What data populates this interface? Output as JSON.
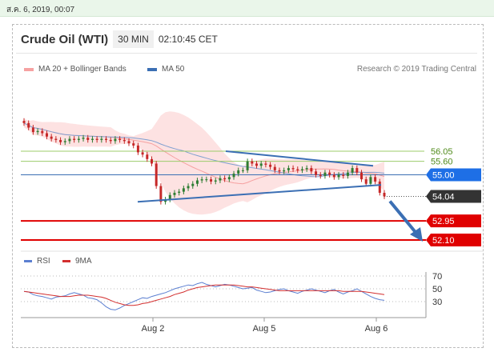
{
  "date_bar": "ส.ค. 6, 2019, 00:07",
  "header": {
    "symbol": "Crude Oil (WTI)",
    "timeframe": "30 MIN",
    "time": "02:10:45 CET"
  },
  "legend": {
    "bollinger": "MA 20 + Bollinger Bands",
    "ma50": "MA 50",
    "credit": "Research © 2019 Trading Central",
    "rsi": "RSI",
    "rsi_ma": "9MA"
  },
  "colors": {
    "bollinger": "#f6a1a1",
    "bollinger_fill": "#fde2e2",
    "ma50": "#3b6fb4",
    "support": "#e00000",
    "resistance": "#9ccc6b",
    "pivot": "#3b6fb4",
    "current": "#333333",
    "candle_up": "#2e7d32",
    "candle_down": "#c62828",
    "rsi": "#5b7fd1",
    "rsi_ma": "#d32f2f"
  },
  "chart_data": [
    {
      "type": "candlestick",
      "title": "Crude Oil (WTI)",
      "x_ticks": [
        "Aug 2",
        "Aug 5",
        "Aug 6"
      ],
      "y_range": [
        51.6,
        57.2
      ],
      "levels": [
        {
          "label": "56.05",
          "value": 56.05,
          "kind": "resistance"
        },
        {
          "label": "55.60",
          "value": 55.6,
          "kind": "resistance"
        },
        {
          "label": "55.00",
          "value": 55.0,
          "kind": "pivot"
        },
        {
          "label": "54.04",
          "value": 54.04,
          "kind": "current"
        },
        {
          "label": "52.95",
          "value": 52.95,
          "kind": "support"
        },
        {
          "label": "52.10",
          "value": 52.1,
          "kind": "support"
        }
      ],
      "close": [
        57.3,
        57.1,
        56.9,
        56.95,
        56.85,
        56.7,
        56.6,
        56.55,
        56.45,
        56.5,
        56.6,
        56.55,
        56.6,
        56.65,
        56.55,
        56.6,
        56.55,
        56.6,
        56.55,
        56.5,
        56.6,
        56.55,
        56.5,
        56.4,
        56.3,
        56.0,
        55.9,
        55.7,
        55.5,
        54.5,
        53.8,
        53.9,
        54.1,
        54.2,
        54.25,
        54.4,
        54.5,
        54.6,
        54.75,
        54.8,
        54.8,
        54.7,
        54.75,
        54.85,
        54.8,
        54.9,
        55.05,
        55.2,
        55.2,
        55.6,
        55.5,
        55.4,
        55.5,
        55.45,
        55.35,
        55.2,
        55.15,
        55.2,
        55.3,
        55.25,
        55.2,
        55.25,
        55.3,
        55.15,
        55.0,
        54.95,
        55.1,
        55.0,
        54.9,
        55.0,
        54.95,
        55.1,
        55.3,
        55.1,
        54.8,
        54.6,
        54.9,
        54.7,
        54.2,
        54.04
      ],
      "channel": {
        "upper": [
          56.05,
          55.4
        ],
        "lower": [
          53.8,
          54.55
        ]
      },
      "forecast_arrow": {
        "from": 54.04,
        "to": 52.1
      }
    },
    {
      "type": "line",
      "title": "RSI",
      "y_ticks": [
        30,
        50,
        70
      ],
      "ylim": [
        0,
        90
      ],
      "series": [
        {
          "name": "RSI",
          "values": [
            46,
            45,
            41,
            39,
            38,
            36,
            34,
            37,
            38,
            39,
            42,
            44,
            42,
            40,
            36,
            35,
            33,
            28,
            22,
            18,
            17,
            20,
            24,
            27,
            30,
            33,
            36,
            35,
            38,
            40,
            42,
            44,
            47,
            50,
            52,
            54,
            56,
            55,
            58,
            60,
            57,
            55,
            53,
            55,
            57,
            56,
            54,
            52,
            50,
            51,
            52,
            48,
            46,
            44,
            45,
            47,
            49,
            50,
            47,
            45,
            43,
            46,
            48,
            50,
            48,
            46,
            44,
            47,
            49,
            45,
            42,
            45,
            47,
            50,
            46,
            42,
            38,
            35,
            33,
            32
          ]
        },
        {
          "name": "9MA",
          "values": [
            46,
            45,
            44,
            43,
            42,
            41,
            40,
            39,
            38,
            38,
            38,
            39,
            40,
            40,
            40,
            39,
            38,
            37,
            35,
            32,
            29,
            27,
            25,
            24,
            24,
            25,
            27,
            28,
            30,
            32,
            34,
            36,
            38,
            41,
            43,
            45,
            48,
            50,
            52,
            53,
            54,
            55,
            56,
            56,
            56,
            56,
            56,
            55,
            54,
            53,
            53,
            52,
            51,
            50,
            49,
            48,
            47,
            47,
            47,
            47,
            47,
            47,
            47,
            47,
            47,
            47,
            47,
            47,
            47,
            47,
            46,
            46,
            46,
            46,
            46,
            45,
            44,
            43,
            42,
            41
          ]
        }
      ]
    }
  ]
}
